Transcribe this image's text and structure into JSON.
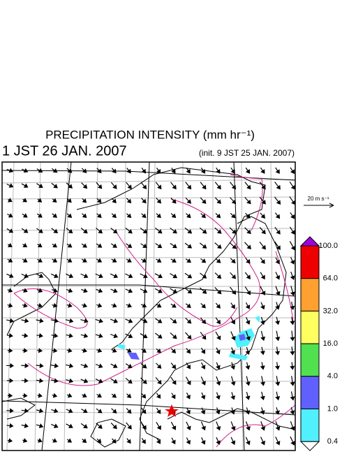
{
  "header": {
    "title": "PRECIPITATION INTENSITY (mm hr⁻¹)",
    "valid_time": "1 JST 26 JAN. 2007",
    "init_time": "(init. 9 JST 25 JAN. 2007)"
  },
  "wind_scale": {
    "label": "20 m s⁻¹"
  },
  "colorbar": {
    "labels": [
      "100.0",
      "64.0",
      "32.0",
      "16.0",
      "4.0",
      "1.0",
      "0.4"
    ],
    "colors": [
      "#a000e0",
      "#ee0000",
      "#ffa030",
      "#ffff60",
      "#50e050",
      "#6060ff",
      "#50f0ff",
      "#ffffff"
    ]
  }
}
